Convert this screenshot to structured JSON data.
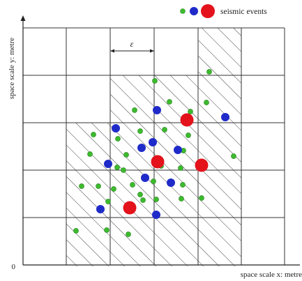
{
  "legend": {
    "label": "seismic events"
  },
  "axes": {
    "origin": "0",
    "x_label": "space scale x: metre",
    "y_label": "space scale y: metre"
  },
  "annotation": {
    "epsilon": "ε"
  },
  "colors": {
    "small_event": "#3dbb2e",
    "medium_event": "#1f2bc9",
    "large_event": "#e3121b",
    "grid": "#333333",
    "hatch": "#444444"
  },
  "chart_data": {
    "type": "scatter",
    "grid": "6x5 cells, hatched cluster region",
    "series": [
      {
        "size": "small",
        "points": [
          [
            300,
            103
          ],
          [
            222,
            116
          ],
          [
            193,
            158
          ],
          [
            296,
            147
          ],
          [
            243,
            146
          ],
          [
            273,
            160
          ],
          [
            134,
            193
          ],
          [
            169,
            199
          ],
          [
            201,
            188
          ],
          [
            236,
            186
          ],
          [
            270,
            194
          ],
          [
            181,
            222
          ],
          [
            129,
            221
          ],
          [
            168,
            240
          ],
          [
            263,
            216
          ],
          [
            335,
            224
          ],
          [
            231,
            238
          ],
          [
            259,
            241
          ],
          [
            177,
            244
          ],
          [
            117,
            267
          ],
          [
            141,
            267
          ],
          [
            163,
            271
          ],
          [
            190,
            265
          ],
          [
            220,
            260
          ],
          [
            260,
            285
          ],
          [
            289,
            284
          ],
          [
            262,
            265
          ],
          [
            201,
            279
          ],
          [
            205,
            287
          ],
          [
            155,
            289
          ],
          [
            109,
            331
          ],
          [
            153,
            330
          ],
          [
            184,
            336
          ],
          [
            224,
            286
          ]
        ]
      },
      {
        "size": "medium",
        "points": [
          [
            225,
            158
          ],
          [
            166,
            184
          ],
          [
            323,
            168
          ],
          [
            255,
            215
          ],
          [
            203,
            212
          ],
          [
            219,
            204
          ],
          [
            155,
            235
          ],
          [
            208,
            255
          ],
          [
            245,
            262
          ],
          [
            144,
            300
          ],
          [
            224,
            308
          ]
        ]
      },
      {
        "size": "large",
        "points": [
          [
            268,
            172
          ],
          [
            226,
            232
          ],
          [
            289,
            237
          ],
          [
            186,
            298
          ]
        ]
      }
    ]
  }
}
